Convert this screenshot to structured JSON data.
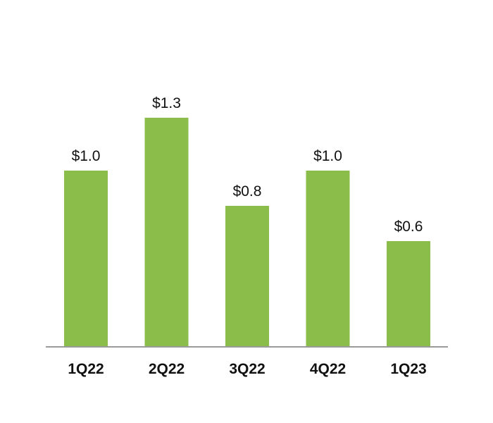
{
  "chart_data": {
    "type": "bar",
    "categories": [
      "1Q22",
      "2Q22",
      "3Q22",
      "4Q22",
      "1Q23"
    ],
    "values": [
      1.0,
      1.3,
      0.8,
      1.0,
      0.6
    ],
    "data_labels": [
      "$1.0",
      "$1.3",
      "$0.8",
      "$1.0",
      "$0.6"
    ],
    "title": "",
    "xlabel": "",
    "ylabel": "",
    "ylim": [
      0,
      1.3
    ],
    "grid": false,
    "legend": "none",
    "colors": {
      "bar": "#8bbd4a",
      "axis": "#9a9a9a",
      "text": "#111111"
    }
  }
}
